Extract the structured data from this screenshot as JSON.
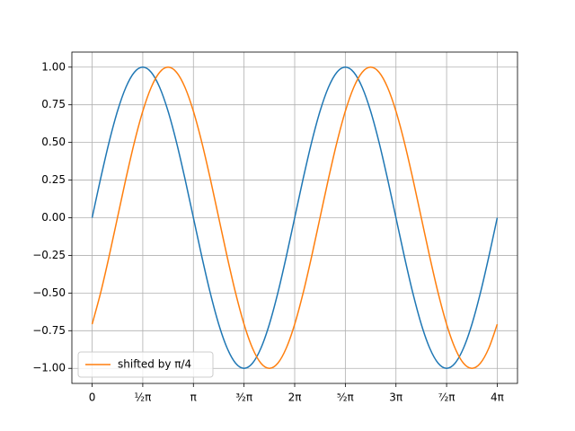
{
  "chart_data": {
    "type": "line",
    "x": [
      0,
      0.2618,
      0.5236,
      0.7854,
      1.0472,
      1.309,
      1.5708,
      1.8326,
      2.0944,
      2.3562,
      2.618,
      2.8798,
      3.1416,
      3.4034,
      3.6652,
      3.927,
      4.1888,
      4.4506,
      4.7124,
      4.9742,
      5.236,
      5.4978,
      5.7596,
      6.0214,
      6.2832,
      6.545,
      6.8068,
      7.0686,
      7.3304,
      7.5922,
      7.854,
      8.1158,
      8.3776,
      8.6394,
      8.9012,
      9.163,
      9.4248,
      9.6866,
      9.9484,
      10.2102,
      10.472,
      10.7338,
      10.9956,
      11.2574,
      11.5192,
      11.781,
      12.0428,
      12.3046,
      12.5664
    ],
    "series": [
      {
        "color": "#1f77b4",
        "values": [
          0,
          0.2588,
          0.5,
          0.7071,
          0.866,
          0.9659,
          1,
          0.9659,
          0.866,
          0.7071,
          0.5,
          0.2588,
          0,
          -0.2588,
          -0.5,
          -0.7071,
          -0.866,
          -0.9659,
          -1,
          -0.9659,
          -0.866,
          -0.7071,
          -0.5,
          -0.2588,
          0,
          0.2588,
          0.5,
          0.7071,
          0.866,
          0.9659,
          1,
          0.9659,
          0.866,
          0.7071,
          0.5,
          0.2588,
          0,
          -0.2588,
          -0.5,
          -0.7071,
          -0.866,
          -0.9659,
          -1,
          -0.9659,
          -0.866,
          -0.7071,
          -0.5,
          -0.2588,
          0
        ]
      },
      {
        "name": "shifted by π/4",
        "color": "#ff7f0e",
        "values": [
          -0.7071,
          -0.5,
          -0.2588,
          0,
          0.2588,
          0.5,
          0.7071,
          0.866,
          0.9659,
          1,
          0.9659,
          0.866,
          0.7071,
          0.5,
          0.2588,
          0,
          -0.2588,
          -0.5,
          -0.7071,
          -0.866,
          -0.9659,
          -1,
          -0.9659,
          -0.866,
          -0.7071,
          -0.5,
          -0.2588,
          0,
          0.2588,
          0.5,
          0.7071,
          0.866,
          0.9659,
          1,
          0.9659,
          0.866,
          0.7071,
          0.5,
          0.2588,
          0,
          -0.2588,
          -0.5,
          -0.7071,
          -0.866,
          -0.9659,
          -1,
          -0.9659,
          -0.866,
          -0.7071
        ]
      }
    ],
    "xlim": [
      -0.6283,
      13.1947
    ],
    "ylim": [
      -1.1,
      1.1
    ],
    "xticks": [
      0,
      {
        "value": 1.5708,
        "label": "½π"
      },
      {
        "value": 3.1416,
        "label": "π"
      },
      {
        "value": 4.7124,
        "label": "³⁄₂π"
      },
      {
        "value": 6.2832,
        "label": "2π"
      },
      {
        "value": 7.854,
        "label": "⁵⁄₂π"
      },
      {
        "value": 9.4248,
        "label": "3π"
      },
      {
        "value": 10.9956,
        "label": "⁷⁄₂π"
      },
      {
        "value": 12.5664,
        "label": "4π"
      }
    ],
    "yticks": [
      {
        "value": -1,
        "label": "−1.00"
      },
      {
        "value": -0.75,
        "label": "−0.75"
      },
      {
        "value": -0.5,
        "label": "−0.50"
      },
      {
        "value": -0.25,
        "label": "−0.25"
      },
      {
        "value": 0,
        "label": "0.00"
      },
      {
        "value": 0.25,
        "label": "0.25"
      },
      {
        "value": 0.5,
        "label": "0.50"
      },
      {
        "value": 0.75,
        "label": "0.75"
      },
      {
        "value": 1,
        "label": "1.00"
      }
    ],
    "grid": true,
    "legend": "lower left"
  }
}
